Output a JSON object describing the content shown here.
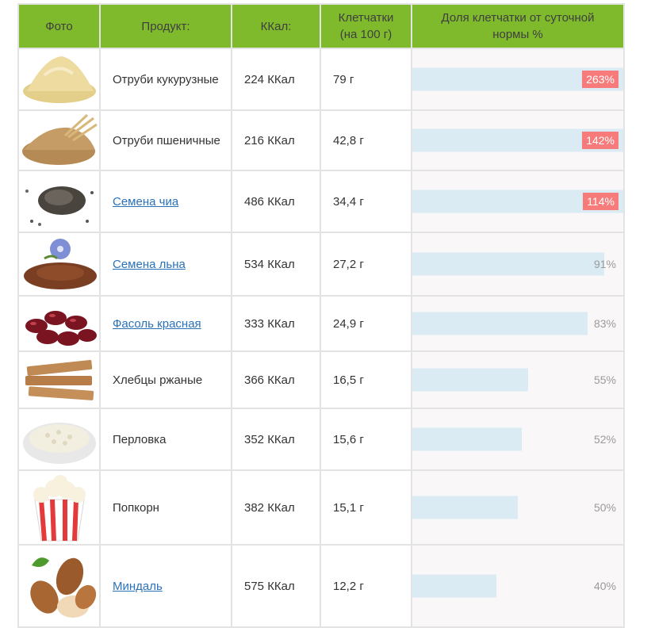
{
  "table": {
    "headers": {
      "photo": "Фото",
      "product": "Продукт:",
      "kcal": "ККал:",
      "fiber_line1": "Клетчатки",
      "fiber_line2": "(на 100 г)",
      "share_line1": "Доля клетчатки от суточной",
      "share_line2": "нормы %"
    },
    "rows": [
      {
        "name": "Отруби кукурузные",
        "link": false,
        "kcal": "224 ККал",
        "fiber": "79 г",
        "share_label": "263%",
        "share_value": 263,
        "icon": "corn-bran-icon"
      },
      {
        "name": "Отруби пшеничные",
        "link": false,
        "kcal": "216 ККал",
        "fiber": "42,8 г",
        "share_label": "142%",
        "share_value": 142,
        "icon": "wheat-bran-icon"
      },
      {
        "name": "Семена чиа",
        "link": true,
        "kcal": "486 ККал",
        "fiber": "34,4 г",
        "share_label": "114%",
        "share_value": 114,
        "icon": "chia-seeds-icon"
      },
      {
        "name": "Семена льна",
        "link": true,
        "kcal": "534 ККал",
        "fiber": "27,2 г",
        "share_label": "91%",
        "share_value": 91,
        "icon": "flax-seeds-icon"
      },
      {
        "name": "Фасоль красная",
        "link": true,
        "kcal": "333 ККал",
        "fiber": "24,9 г",
        "share_label": "83%",
        "share_value": 83,
        "icon": "red-beans-icon"
      },
      {
        "name": "Хлебцы ржаные",
        "link": false,
        "kcal": "366 ККал",
        "fiber": "16,5 г",
        "share_label": "55%",
        "share_value": 55,
        "icon": "rye-crispbread-icon"
      },
      {
        "name": "Перловка",
        "link": false,
        "kcal": "352 ККал",
        "fiber": "15,6 г",
        "share_label": "52%",
        "share_value": 52,
        "icon": "pearl-barley-icon"
      },
      {
        "name": "Попкорн",
        "link": false,
        "kcal": "382 ККал",
        "fiber": "15,1 г",
        "share_label": "50%",
        "share_value": 50,
        "icon": "popcorn-icon"
      },
      {
        "name": "Миндаль",
        "link": true,
        "kcal": "575 ККал",
        "fiber": "12,2 г",
        "share_label": "40%",
        "share_value": 40,
        "icon": "almonds-icon"
      }
    ]
  },
  "colors": {
    "header_bg": "#7fba2d",
    "bar": "#daebf4",
    "badge": "#f77b7a",
    "link": "#2a72b8"
  }
}
